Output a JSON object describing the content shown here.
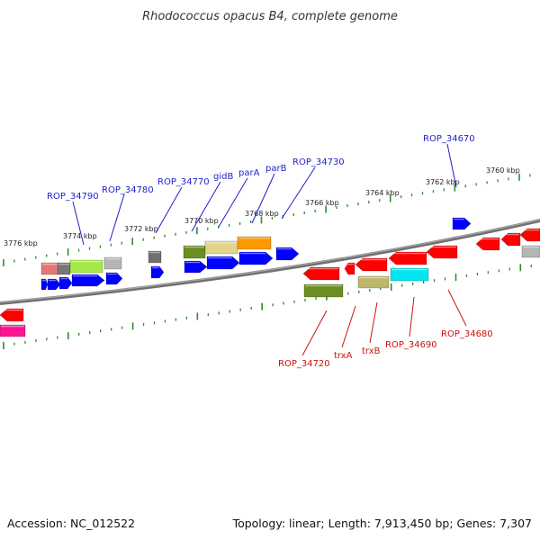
{
  "title": "Rhodococcus opacus B4, complete genome",
  "footer": {
    "accession": "Accession: NC_012522",
    "summary": "Topology: linear; Length: 7,913,450 bp; Genes: 7,307"
  },
  "colors": {
    "backbone": "#808080",
    "tick": "#2e8b2e",
    "top_label": "#1f1fcc",
    "bottom_label": "#cc1111"
  },
  "ticks": [
    "3776 kbp",
    "3774 kbp",
    "3772 kbp",
    "3770 kbp",
    "3768 kbp",
    "3766 kbp",
    "3764 kbp",
    "3762 kbp",
    "3760 kbp"
  ],
  "top_labels": [
    "ROP_34790",
    "ROP_34780",
    "ROP_34770",
    "gidB",
    "parA",
    "parB",
    "ROP_34730",
    "ROP_34670"
  ],
  "bottom_labels": [
    "ROP_34720",
    "trxA",
    "trxB",
    "ROP_34690",
    "ROP_34680"
  ]
}
